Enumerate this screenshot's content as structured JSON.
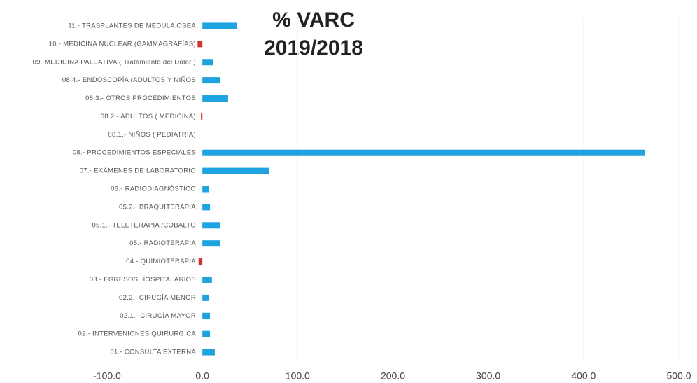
{
  "chart_data": {
    "type": "hbar",
    "title": "% VARC",
    "subtitle": "2019/2018",
    "categories": [
      "11.- TRASPLANTES DE MEDULA OSEA",
      "10.- MEDICINA NUCLEAR (GAMMAGRAFÍAS)",
      "09.-MEDICINA PALEATIVA ( Tratamiento del Dolor )",
      "08.4.- ENDOSCOPÍA (ADULTOS Y NIÑOS",
      "08.3.- OTROS PROCEDIMIENTOS",
      "08.2.- ADULTOS ( MEDICINA)",
      "08.1.- NIÑOS ( PEDIATRIA)",
      "08.- PROCEDIMIENTOS ESPECIALES",
      "07.- EXÁMENES DE LABORATORIO",
      "06.- RADIODIAGNÓSTICO",
      "05.2.- BRAQUITERAPIA",
      "05.1.- TELETERAPIA /COBALTO",
      "05.- RADIOTERAPIA",
      "04.- QUIMIOTERAPIA",
      "03.- EGRESOS HOSPITALARIOS",
      "02.2.- CIRUGÍA MENOR",
      "02.1.- CIRUGÍA MAYOR",
      "02.- INTERVENIONES QUIRÚRGICA",
      "01.- CONSULTA EXTERNA"
    ],
    "values": [
      36,
      -5,
      11,
      19,
      27,
      -1.5,
      0,
      464,
      70,
      7,
      8,
      19,
      19,
      -4,
      10,
      7,
      8,
      8,
      13
    ],
    "color": "#1ea3e0",
    "negative_color": "#d2302c",
    "xlim": [
      -100,
      500
    ],
    "xticks": [
      {
        "value": -100,
        "label": "-100.0"
      },
      {
        "value": 0,
        "label": "0.0"
      },
      {
        "value": 100,
        "label": "100.0"
      },
      {
        "value": 200,
        "label": "200.0"
      },
      {
        "value": 300,
        "label": "300.0"
      },
      {
        "value": 400,
        "label": "400.0"
      },
      {
        "value": 500,
        "label": "500.0"
      }
    ],
    "grid": true
  }
}
